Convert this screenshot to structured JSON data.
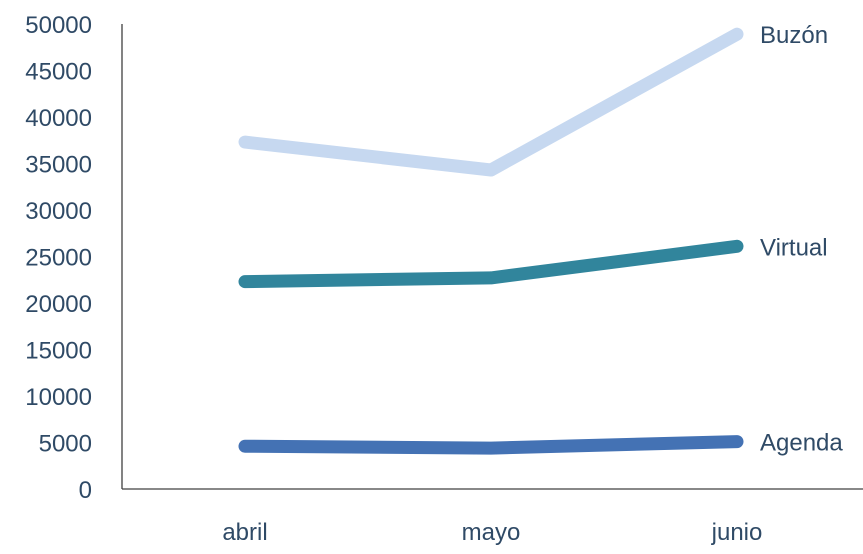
{
  "chart_data": {
    "type": "line",
    "categories": [
      "abril",
      "mayo",
      "junio"
    ],
    "ylim": [
      0,
      50000
    ],
    "yticks": [
      0,
      5000,
      10000,
      15000,
      20000,
      25000,
      30000,
      35000,
      40000,
      45000,
      50000
    ],
    "grid": false,
    "legend": "inline labels at line ends",
    "series": [
      {
        "name": "Buzón",
        "values": [
          37300,
          34300,
          48900
        ],
        "color": "#C6D8F0"
      },
      {
        "name": "Virtual",
        "values": [
          22300,
          22700,
          26100
        ],
        "color": "#31859C"
      },
      {
        "name": "Agenda",
        "values": [
          4600,
          4400,
          5100
        ],
        "color": "#4472B4"
      }
    ],
    "tick_color": "#2F4A66",
    "axis_color": "#404040"
  }
}
